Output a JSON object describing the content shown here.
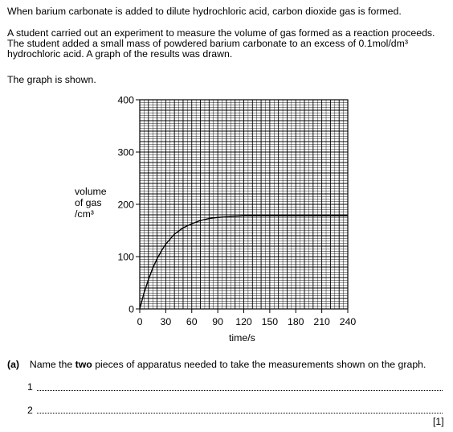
{
  "intro": "When barium carbonate is added to dilute hydrochloric acid, carbon dioxide gas is formed.",
  "para_lines": [
    "A student carried out an experiment to measure the volume of gas formed as a reaction proceeds.",
    "The student added a small mass of powdered barium carbonate to an excess of 0.1mol/dm³",
    "hydrochloric acid. A graph of the results was drawn."
  ],
  "graph_intro": "The graph is shown.",
  "y_axis_label": [
    "volume",
    "of gas",
    "/cm³"
  ],
  "x_axis_label": "time/s",
  "question_a": {
    "label": "(a)",
    "text_before": "Name the ",
    "text_bold": "two",
    "text_after": " pieces of apparatus needed to take the measurements shown on the graph.",
    "line_numbers": [
      "1",
      "2"
    ],
    "marks": "[1]"
  },
  "chart_data": {
    "type": "line",
    "xlabel": "time/s",
    "ylabel": "volume of gas /cm³",
    "xlim": [
      0,
      240
    ],
    "ylim": [
      0,
      400
    ],
    "x_ticks": [
      "0",
      "30",
      "60",
      "90",
      "120",
      "150",
      "180",
      "210",
      "240"
    ],
    "y_ticks": [
      "0",
      "100",
      "200",
      "300",
      "400"
    ],
    "grid": true,
    "series": [
      {
        "x": [
          0,
          5,
          10,
          15,
          20,
          25,
          30,
          40,
          50,
          60,
          70,
          80,
          90,
          100,
          110,
          120,
          130,
          150,
          180,
          210,
          240
        ],
        "y": [
          0,
          31,
          56,
          78,
          96,
          111,
          124,
          143,
          155,
          163,
          169,
          173,
          175,
          176,
          177,
          178,
          178,
          178,
          178,
          178,
          178
        ]
      }
    ]
  }
}
